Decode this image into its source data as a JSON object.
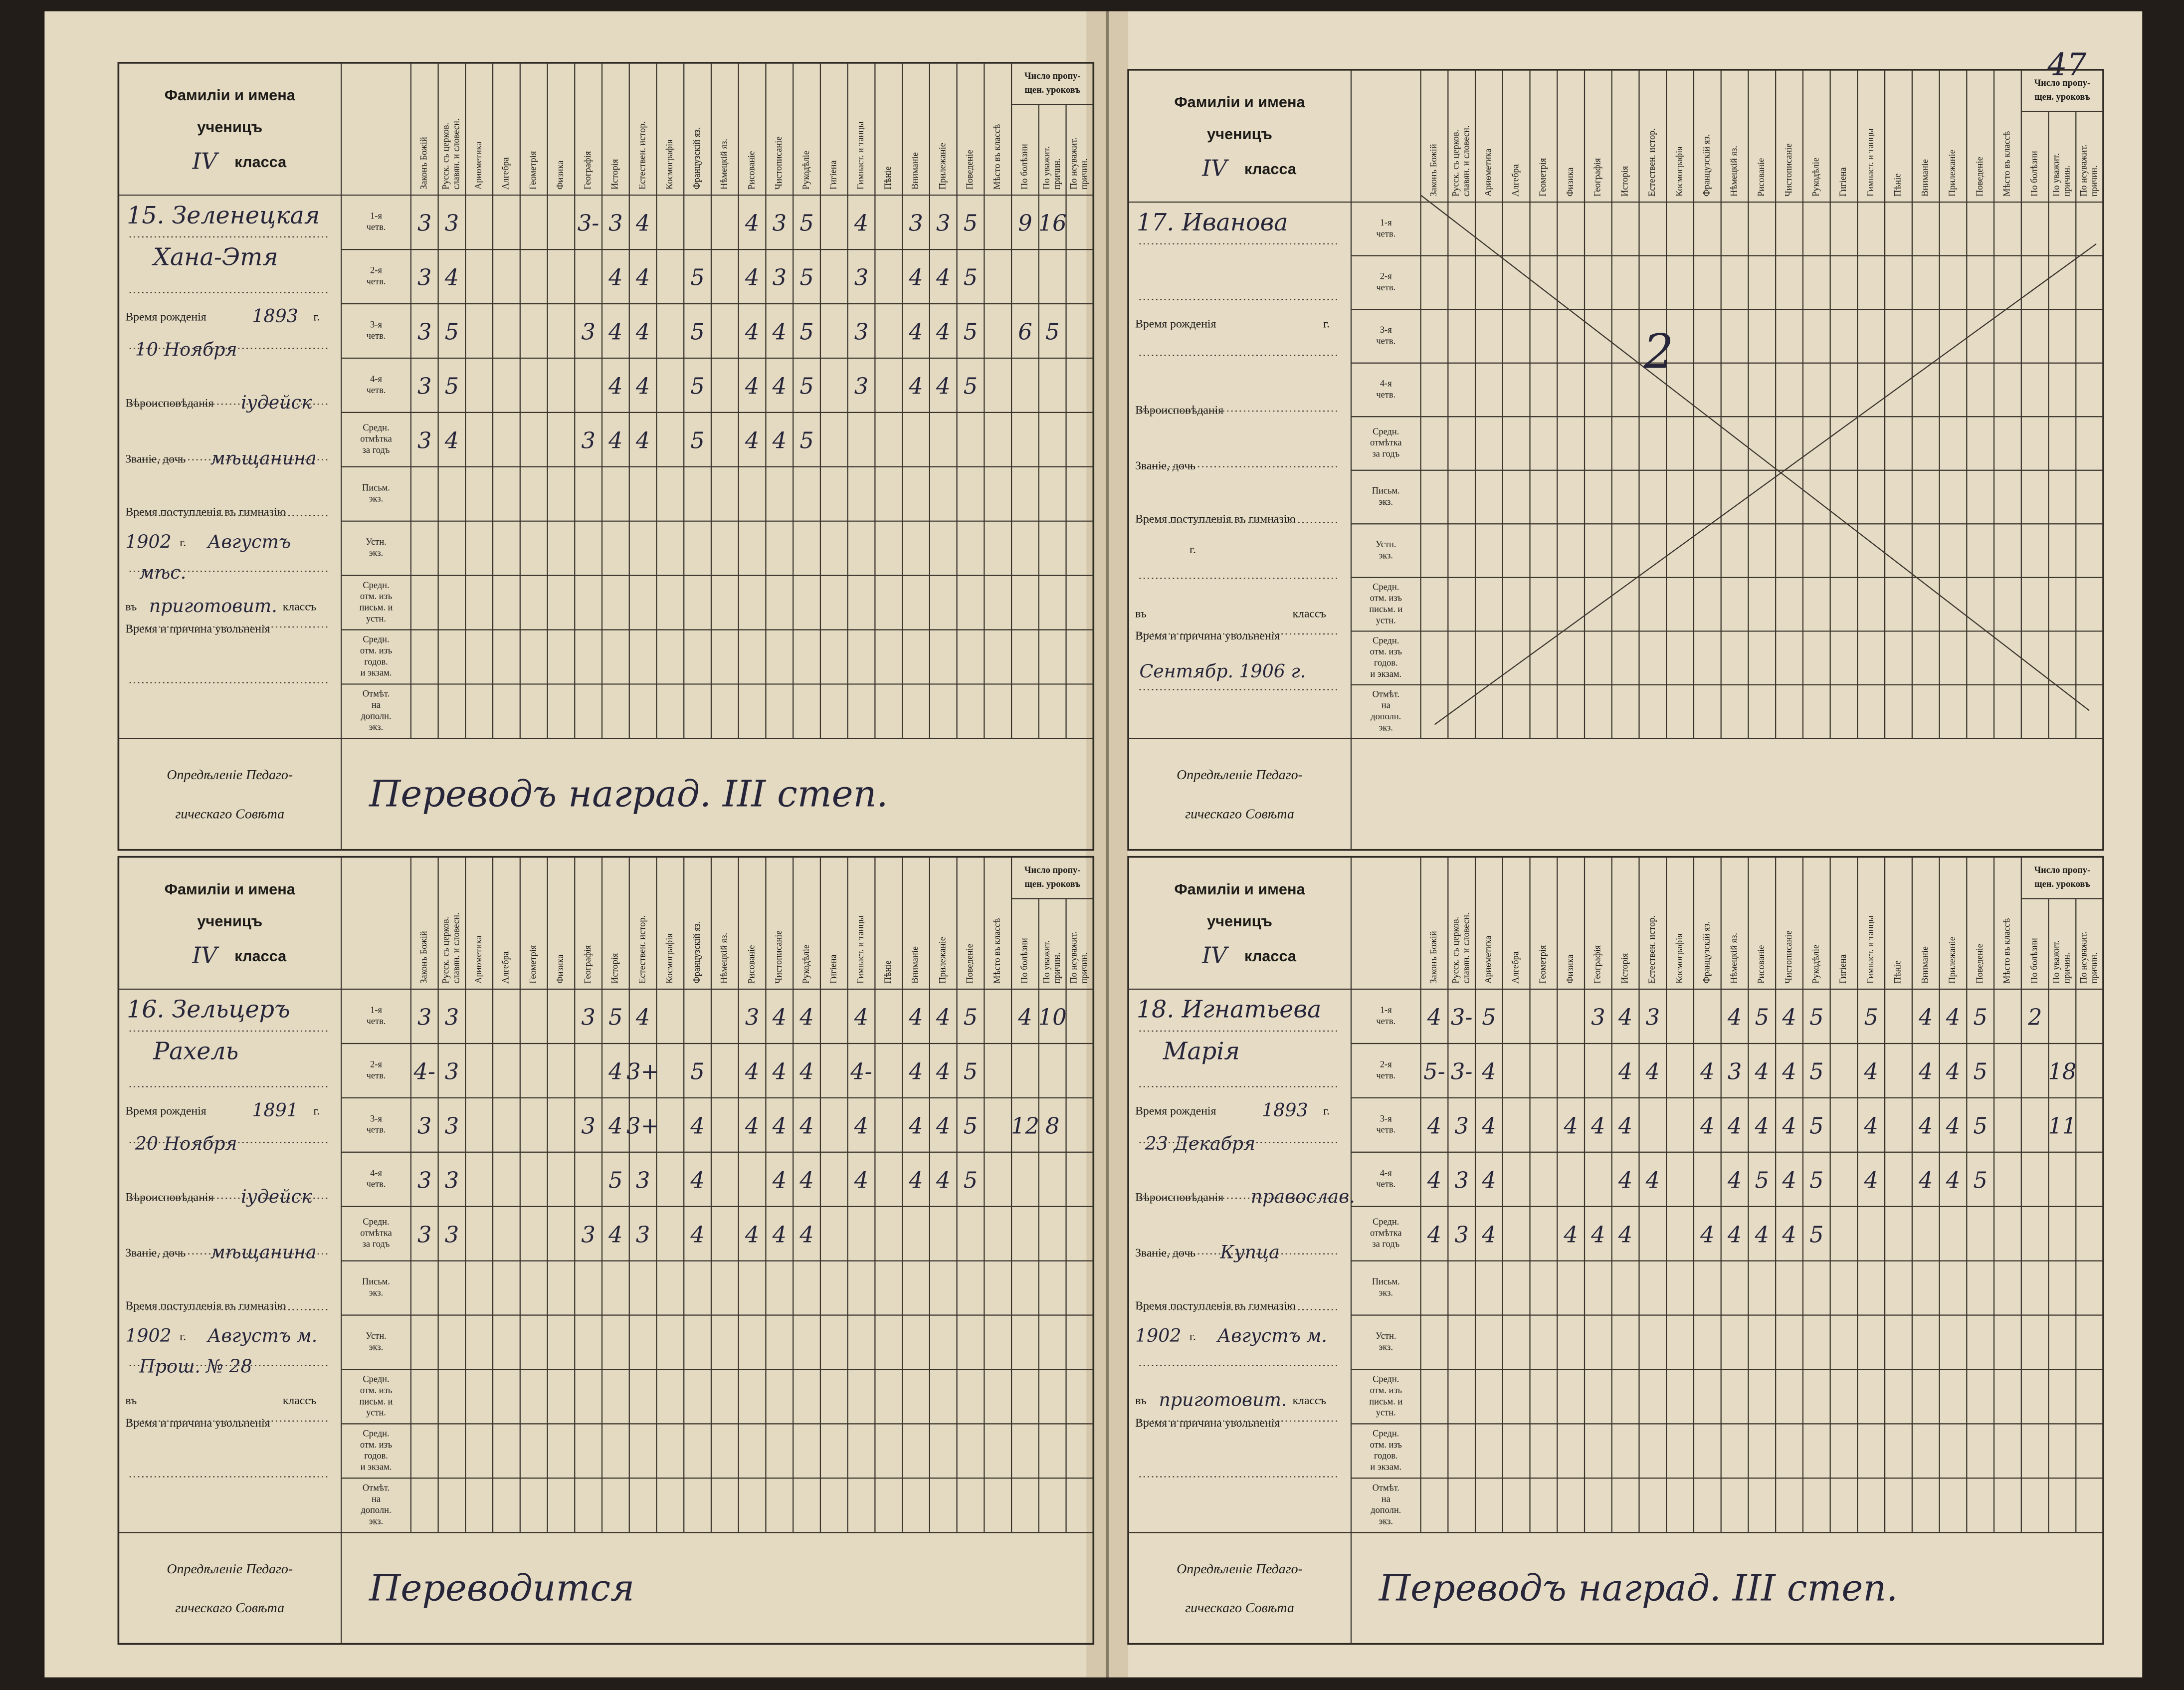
{
  "page_number": "47",
  "form": {
    "title": "Фамиліи и имена",
    "pupils_word": "ученицъ",
    "class": "IV",
    "class_word": "класса",
    "subjects": [
      [
        "Законъ Божій"
      ],
      [
        "Русск. съ церков.",
        "славян. и словесн."
      ],
      [
        "Ариѳметика"
      ],
      [
        "Алгебра"
      ],
      [
        "Геометрія"
      ],
      [
        "Физика"
      ],
      [
        "Географія"
      ],
      [
        "Исторія"
      ],
      [
        "Естествен. истор."
      ],
      [
        "Космографія"
      ],
      [
        "Французскій яз."
      ],
      [
        "Нѣмецкій яз."
      ],
      [
        "Рисованіе"
      ],
      [
        "Чистописаніе"
      ],
      [
        "Рукодѣліе"
      ],
      [
        "Гигіена"
      ],
      [
        "Гимнаст. и танцы"
      ],
      [
        "Пѣніе"
      ],
      [
        "Вниманіе"
      ],
      [
        "Прилежаніе"
      ],
      [
        "Поведеніе"
      ],
      [
        "Мѣсто въ классѣ"
      ],
      [
        "По болѣзни"
      ],
      [
        "По уважит.",
        "причин."
      ],
      [
        "По неуважит.",
        "причин."
      ]
    ],
    "missed_group": [
      "Число пропу-",
      "щен. уроковъ"
    ],
    "row_labels": [
      [
        "1-я",
        "четв."
      ],
      [
        "2-я",
        "четв."
      ],
      [
        "3-я",
        "четв."
      ],
      [
        "4-я",
        "четв."
      ],
      [
        "Средн.",
        "отмѣтка",
        "за годъ"
      ],
      [
        "Письм.",
        "экз."
      ],
      [
        "Устн.",
        "экз."
      ],
      [
        "Средн.",
        "отм. изъ",
        "письм. и",
        "устн."
      ],
      [
        "Средн.",
        "отм. изъ",
        "годов.",
        "и экзам."
      ],
      [
        "Отмѣт.",
        "на",
        "дополн.",
        "экз."
      ]
    ],
    "birth_label": "Время рожденія",
    "year_suffix": "г.",
    "religion_label": "Вѣроисповѣданія",
    "status_label": "Званіе, дочь",
    "admission_label": "Время поступленія въ гимназію",
    "class_prefix": "въ",
    "class_suffix": "классъ",
    "dismissal_label": "Время и причина увольненія",
    "council_label": [
      "Опредѣленіе Педаго-",
      "гическаго Совѣта"
    ]
  },
  "records": [
    {
      "name": [
        "15. Зеленецкая",
        "Хана-Этя"
      ],
      "birth_year": "1893",
      "birth_date": "10 Ноября",
      "religion": "іудейск",
      "status": "мѣщанина",
      "admission_year": "1902",
      "admission_month": "Августъ",
      "admission_note": "мѣс.",
      "admission_class": "приготовит.",
      "dismissal": null,
      "note": null,
      "council": "Переводъ наград. III степ.",
      "grades": [
        [
          "3",
          "3",
          null,
          null,
          null,
          null,
          "3-",
          "3",
          "4",
          null,
          null,
          null,
          "4",
          "3",
          "5",
          null,
          "4",
          null,
          "3",
          "3",
          "5",
          null,
          "9",
          "16",
          null
        ],
        [
          "3",
          "4",
          null,
          null,
          null,
          null,
          null,
          "4",
          "4",
          null,
          "5",
          null,
          "4",
          "3",
          "5",
          null,
          "3",
          null,
          "4",
          "4",
          "5",
          null,
          null,
          null,
          null
        ],
        [
          "3",
          "5",
          null,
          null,
          null,
          null,
          "3",
          "4",
          "4",
          null,
          "5",
          null,
          "4",
          "4",
          "5",
          null,
          "3",
          null,
          "4",
          "4",
          "5",
          null,
          "6",
          "5",
          null
        ],
        [
          "3",
          "5",
          null,
          null,
          null,
          null,
          null,
          "4",
          "4",
          null,
          "5",
          null,
          "4",
          "4",
          "5",
          null,
          "3",
          null,
          "4",
          "4",
          "5",
          null,
          null,
          null,
          null
        ],
        [
          "3",
          "4",
          null,
          null,
          null,
          null,
          "3",
          "4",
          "4",
          null,
          "5",
          null,
          "4",
          "4",
          "5",
          null,
          null,
          null,
          null,
          null,
          null,
          null,
          null,
          null,
          null
        ]
      ]
    },
    {
      "name": [
        "16. Зельцеръ",
        "Рахель"
      ],
      "birth_year": "1891",
      "birth_date": "20 Ноября",
      "religion": "іудейск",
      "status": "мѣщанина",
      "admission_year": "1902",
      "admission_month": "Августъ м.",
      "admission_note": "Прош. № 28",
      "admission_class": null,
      "dismissal": null,
      "note": null,
      "council": "Переводится",
      "grades": [
        [
          "3",
          "3",
          null,
          null,
          null,
          null,
          "3",
          "5",
          "4",
          null,
          null,
          null,
          "3",
          "4",
          "4",
          null,
          "4",
          null,
          "4",
          "4",
          "5",
          null,
          "4",
          "10",
          null
        ],
        [
          "4-",
          "3",
          null,
          null,
          null,
          null,
          null,
          "4",
          "3+",
          null,
          "5",
          null,
          "4",
          "4",
          "4",
          null,
          "4-",
          null,
          "4",
          "4",
          "5",
          null,
          null,
          null,
          null
        ],
        [
          "3",
          "3",
          null,
          null,
          null,
          null,
          "3",
          "4",
          "3+",
          null,
          "4",
          null,
          "4",
          "4",
          "4",
          null,
          "4",
          null,
          "4",
          "4",
          "5",
          null,
          "12",
          "8",
          null
        ],
        [
          "3",
          "3",
          null,
          null,
          null,
          null,
          null,
          "5",
          "3",
          null,
          "4",
          null,
          null,
          "4",
          "4",
          null,
          "4",
          null,
          "4",
          "4",
          "5",
          null,
          null,
          null,
          null
        ],
        [
          "3",
          "3",
          null,
          null,
          null,
          null,
          "3",
          "4",
          "3",
          null,
          "4",
          null,
          "4",
          "4",
          "4",
          null,
          null,
          null,
          null,
          null,
          null,
          null,
          null,
          null,
          null
        ]
      ]
    },
    {
      "name": [
        "17. Иванова"
      ],
      "birth_year": null,
      "birth_date": null,
      "religion": null,
      "status": null,
      "admission_year": null,
      "admission_month": null,
      "admission_note": null,
      "admission_class": null,
      "dismissal": "Сентябр. 1906 г.",
      "note": "2",
      "council": null,
      "grades": []
    },
    {
      "name": [
        "18. Игнатьева",
        "Марія"
      ],
      "birth_year": "1893",
      "birth_date": "23 Декабря",
      "religion": "православ.",
      "status": "Купца",
      "admission_year": "1902",
      "admission_month": "Августъ м.",
      "admission_note": null,
      "admission_class": "приготовит.",
      "dismissal": null,
      "note": null,
      "council": "Переводъ наград. III степ.",
      "grades": [
        [
          "4",
          "3-",
          "5",
          null,
          null,
          null,
          "3",
          "4",
          "3",
          null,
          null,
          "4",
          "5",
          "4",
          "5",
          null,
          "5",
          null,
          "4",
          "4",
          "5",
          null,
          "2",
          null,
          null
        ],
        [
          "5-",
          "3-",
          "4",
          null,
          null,
          null,
          null,
          "4",
          "4",
          null,
          "4",
          "3",
          "4",
          "4",
          "5",
          null,
          "4",
          null,
          "4",
          "4",
          "5",
          null,
          null,
          "18",
          null
        ],
        [
          "4",
          "3",
          "4",
          null,
          null,
          "4",
          "4",
          "4",
          null,
          null,
          "4",
          "4",
          "4",
          "4",
          "5",
          null,
          "4",
          null,
          "4",
          "4",
          "5",
          null,
          null,
          "11",
          null
        ],
        [
          "4",
          "3",
          "4",
          null,
          null,
          null,
          null,
          "4",
          "4",
          null,
          null,
          "4",
          "5",
          "4",
          "5",
          null,
          "4",
          null,
          "4",
          "4",
          "5",
          null,
          null,
          null,
          null
        ],
        [
          "4",
          "3",
          "4",
          null,
          null,
          "4",
          "4",
          "4",
          null,
          null,
          "4",
          "4",
          "4",
          "4",
          "5",
          null,
          null,
          null,
          null,
          null,
          null,
          null,
          null,
          null,
          null
        ]
      ]
    }
  ]
}
